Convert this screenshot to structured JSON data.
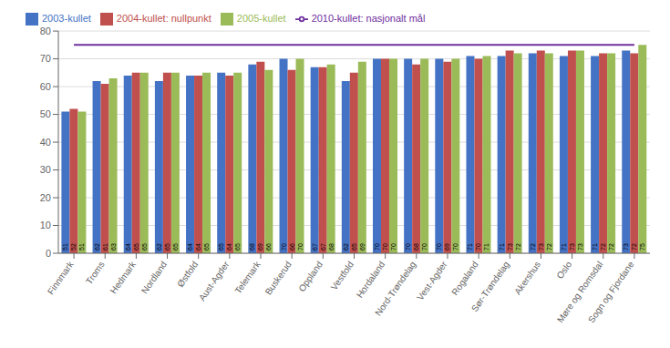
{
  "chart_data": {
    "type": "bar",
    "categories": [
      "Finnmark",
      "Troms",
      "Hedmark",
      "Nordland",
      "Østfold",
      "Aust-Agder",
      "Telemark",
      "Buskerud",
      "Oppland",
      "Vestfold",
      "Hordaland",
      "Nord-Trøndelag",
      "Vest-Agder",
      "Rogaland",
      "Sør-Trøndelag",
      "Akershus",
      "Oslo",
      "Møre og Romsdal",
      "Sogn og Fjordane"
    ],
    "series": [
      {
        "name": "2003-kullet",
        "type": "bar",
        "color": "#4472C4",
        "values": [
          51,
          62,
          64,
          62,
          64,
          65,
          68,
          70,
          67,
          62,
          70,
          70,
          70,
          71,
          71,
          72,
          71,
          71,
          73
        ]
      },
      {
        "name": "2004-kullet: nullpunkt",
        "type": "bar",
        "color": "#C0504D",
        "values": [
          52,
          61,
          65,
          65,
          64,
          64,
          69,
          66,
          67,
          65,
          70,
          68,
          69,
          70,
          73,
          73,
          73,
          72,
          72
        ]
      },
      {
        "name": "2005-kullet",
        "type": "bar",
        "color": "#9BBB59",
        "values": [
          51,
          63,
          65,
          65,
          65,
          65,
          66,
          70,
          68,
          69,
          70,
          70,
          70,
          71,
          72,
          72,
          73,
          72,
          75
        ]
      },
      {
        "name": "2010-kullet: nasjonalt mål",
        "type": "line",
        "color": "#7030A0",
        "values": [
          75,
          75,
          75,
          75,
          75,
          75,
          75,
          75,
          75,
          75,
          75,
          75,
          75,
          75,
          75,
          75,
          75,
          75,
          75
        ]
      }
    ],
    "ylim": [
      0,
      80
    ],
    "yticks": [
      0,
      10,
      20,
      30,
      40,
      50,
      60,
      70,
      80
    ],
    "grid": true,
    "legend": "upper left",
    "data_labels": true
  }
}
